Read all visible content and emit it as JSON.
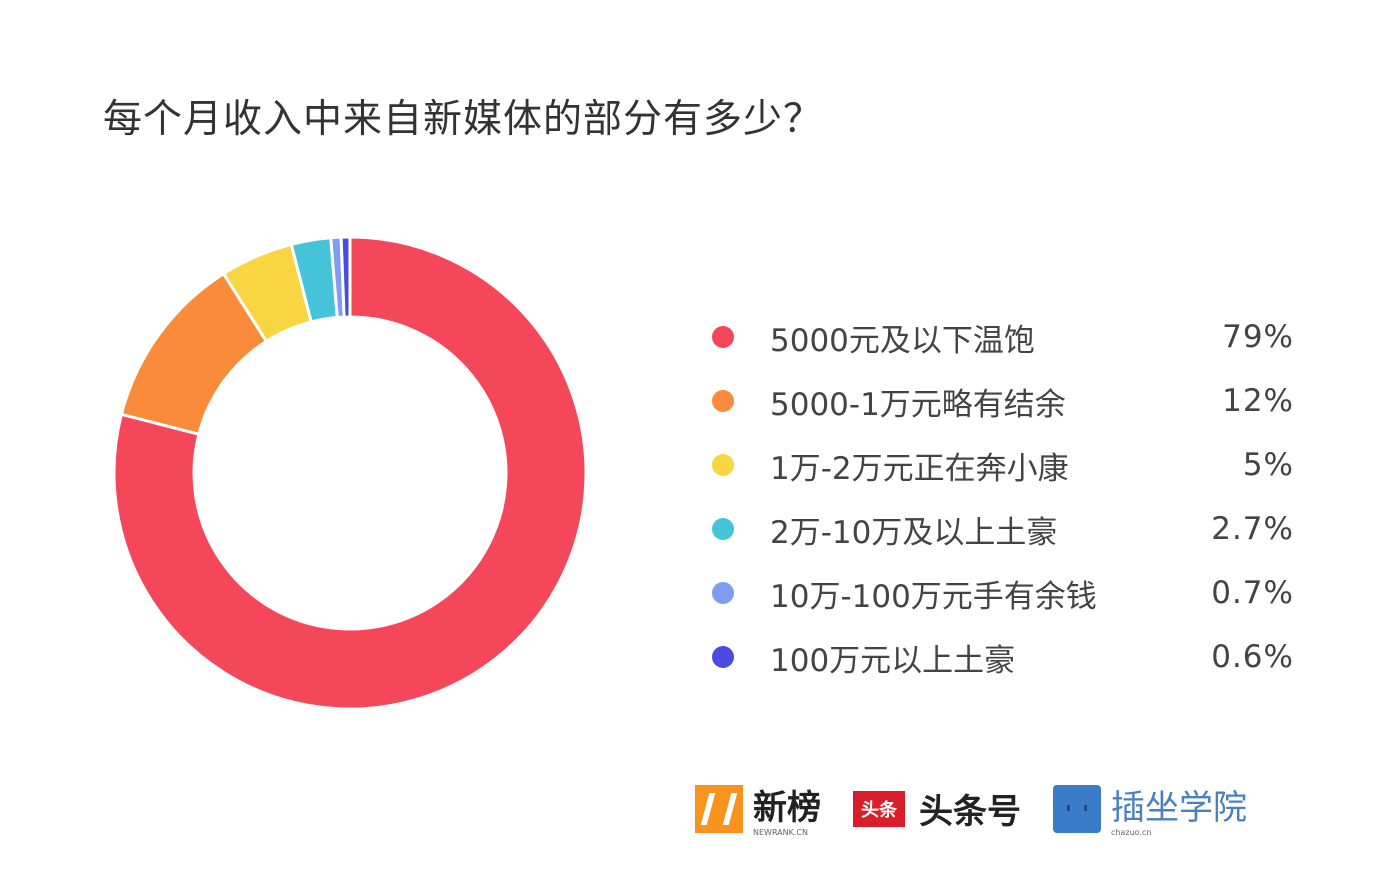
{
  "chart_data": {
    "type": "pie",
    "donut": true,
    "title": "每个月收入中来自新媒体的部分有多少？",
    "legend_position": "right",
    "slices": [
      {
        "label": "5000元及以下温饱",
        "value": 79,
        "display": "79%",
        "color": "#f5475a"
      },
      {
        "label": "5000-1万元略有结余",
        "value": 12,
        "display": "12%",
        "color": "#f98b3a"
      },
      {
        "label": "1万-2万元正在奔小康",
        "value": 5,
        "display": "5%",
        "color": "#f9d443"
      },
      {
        "label": "2万-10万及以上土豪",
        "value": 2.7,
        "display": "2.7%",
        "color": "#45c3d8"
      },
      {
        "label": "10万-100万元手有余钱",
        "value": 0.7,
        "display": "0.7%",
        "color": "#7f9cf0"
      },
      {
        "label": "100万元以上土豪",
        "value": 0.6,
        "display": "0.6%",
        "color": "#4b4be0"
      }
    ]
  },
  "logos": {
    "newrank": {
      "name": "新榜",
      "sub": "NEWRANK.CN"
    },
    "toutiao": {
      "badge": "头条",
      "name": "头条号"
    },
    "chazuo": {
      "name": "插坐学院",
      "sub": "chazuo.cn"
    }
  }
}
